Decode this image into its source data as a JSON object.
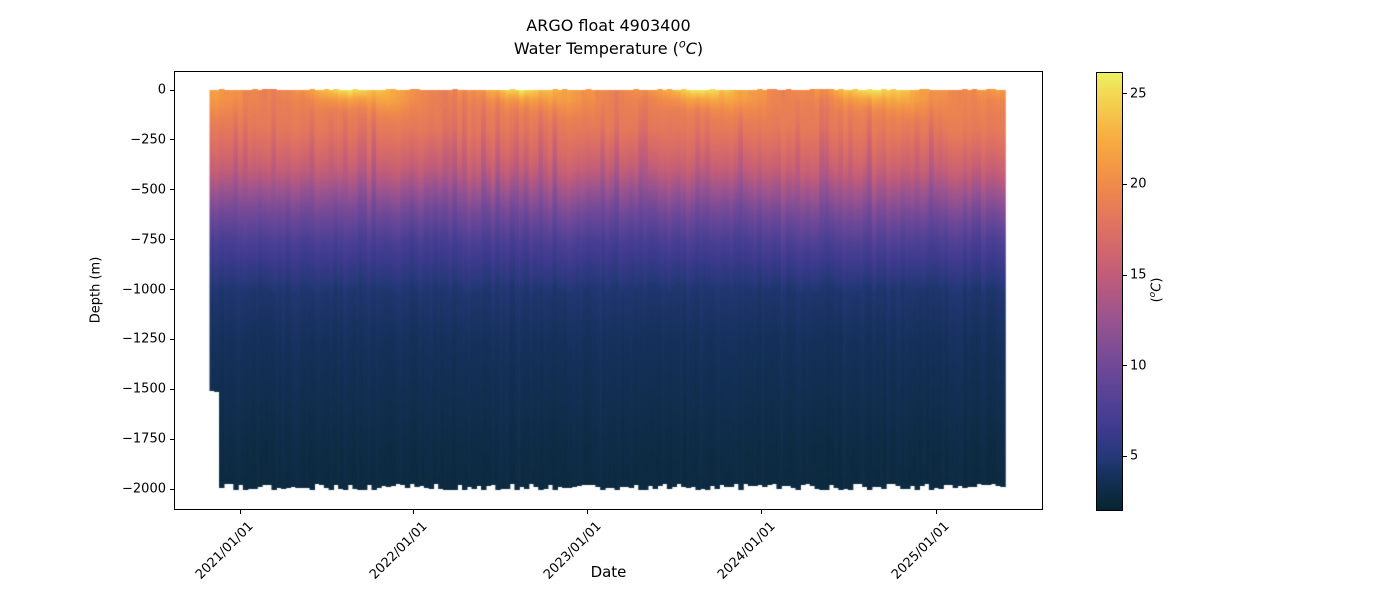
{
  "figure": {
    "title_line1": "ARGO float 4903400",
    "title_line2": {
      "prefix": "Water Temperature (",
      "sup": "o",
      "unit": "C",
      "suffix": ")"
    }
  },
  "axes": {
    "xlabel": "Date",
    "ylabel": "Depth (m)",
    "ytick_values": [
      0,
      -250,
      -500,
      -750,
      -1000,
      -1250,
      -1500,
      -1750,
      -2000
    ],
    "ytick_labels": [
      "0",
      "−250",
      "−500",
      "−750",
      "−1000",
      "−1250",
      "−1500",
      "−1750",
      "−2000"
    ],
    "xtick_labels": [
      "2021/01/01",
      "2022/01/01",
      "2023/01/01",
      "2024/01/01",
      "2025/01/01"
    ],
    "xtick_year_day_offsets": [
      0,
      365,
      730,
      1095,
      1461
    ],
    "ylim_m": [
      100,
      -2110
    ]
  },
  "colorbar": {
    "label": {
      "prefix": "(",
      "sup": "o",
      "unit": "C",
      "suffix": ")"
    },
    "tick_values": [
      25,
      20,
      15,
      10,
      5
    ],
    "tick_labels": [
      "25",
      "20",
      "15",
      "10",
      "5"
    ],
    "vmin": 2.1,
    "vmax": 26.2,
    "stops": [
      {
        "t": 2.1,
        "c": "#082433"
      },
      {
        "t": 3.0,
        "c": "#0d2b42"
      },
      {
        "t": 4.0,
        "c": "#15315c"
      },
      {
        "t": 5.0,
        "c": "#253878"
      },
      {
        "t": 6.5,
        "c": "#3c3a8c"
      },
      {
        "t": 8.0,
        "c": "#514195"
      },
      {
        "t": 10.0,
        "c": "#6f4898"
      },
      {
        "t": 12.5,
        "c": "#985390"
      },
      {
        "t": 15.0,
        "c": "#c05c7a"
      },
      {
        "t": 17.5,
        "c": "#dd6f63"
      },
      {
        "t": 20.0,
        "c": "#f08a4b"
      },
      {
        "t": 22.5,
        "c": "#f7ab41"
      },
      {
        "t": 25.0,
        "c": "#f3d852"
      },
      {
        "t": 26.2,
        "c": "#eaf261"
      }
    ]
  },
  "chart_data": {
    "type": "heatmap",
    "title": "ARGO float 4903400 — Water Temperature (°C)",
    "xlabel": "Date",
    "ylabel": "Depth (m)",
    "colormap_range_c": [
      2.1,
      26.2
    ],
    "coverage": {
      "start": "2020-11-03",
      "end": "2025-05-27",
      "profile_interval_days": 10,
      "first_profiles_max_depth_m": -1500,
      "typical_profile_max_depth_m": -1990
    },
    "y_depths_m": [
      0,
      -50,
      -100,
      -150,
      -200,
      -300,
      -400,
      -500,
      -600,
      -750,
      -1000,
      -1250,
      -1500,
      -1750,
      -2000
    ],
    "x_time_points": [
      "2020-11",
      "2021-02",
      "2021-05",
      "2021-08",
      "2021-11",
      "2022-02",
      "2022-05",
      "2022-08",
      "2022-11",
      "2023-02",
      "2023-05",
      "2023-08",
      "2023-11",
      "2024-02",
      "2024-05",
      "2024-08",
      "2024-11",
      "2025-02",
      "2025-05"
    ],
    "temperature_c": [
      [
        21.5,
        21.0,
        20.0,
        19.0,
        18.4,
        17.0,
        15.4,
        12.8,
        10.5,
        7.6,
        4.7,
        4.0,
        3.6,
        3.2,
        2.9
      ],
      [
        19.2,
        19.1,
        19.0,
        18.8,
        18.5,
        17.2,
        15.6,
        13.0,
        10.7,
        7.8,
        4.7,
        4.0,
        3.6,
        3.2,
        2.9
      ],
      [
        20.6,
        19.4,
        18.9,
        18.6,
        18.3,
        16.8,
        15.1,
        12.4,
        10.2,
        7.4,
        4.7,
        4.0,
        3.6,
        3.2,
        2.9
      ],
      [
        26.0,
        21.6,
        19.4,
        18.8,
        18.4,
        17.1,
        15.5,
        12.9,
        10.6,
        7.7,
        4.7,
        4.0,
        3.6,
        3.2,
        2.9
      ],
      [
        22.6,
        21.9,
        20.3,
        19.1,
        18.5,
        17.0,
        15.3,
        12.7,
        10.4,
        7.5,
        4.7,
        4.0,
        3.6,
        3.2,
        2.9
      ],
      [
        19.0,
        18.9,
        18.8,
        18.6,
        18.3,
        16.7,
        15.0,
        12.3,
        10.1,
        7.3,
        4.7,
        4.0,
        3.6,
        3.2,
        2.9
      ],
      [
        20.8,
        19.5,
        18.9,
        18.6,
        18.3,
        17.0,
        15.4,
        12.8,
        10.5,
        7.6,
        4.7,
        4.0,
        3.6,
        3.2,
        2.9
      ],
      [
        25.6,
        21.3,
        19.3,
        18.7,
        18.3,
        16.9,
        15.2,
        12.6,
        10.3,
        7.5,
        4.7,
        4.0,
        3.6,
        3.2,
        2.9
      ],
      [
        22.3,
        21.6,
        20.1,
        19.0,
        18.4,
        17.2,
        15.6,
        13.1,
        10.8,
        7.8,
        4.7,
        4.0,
        3.6,
        3.2,
        2.9
      ],
      [
        19.1,
        19.0,
        18.9,
        18.7,
        18.4,
        16.8,
        15.1,
        12.5,
        10.2,
        7.4,
        4.7,
        4.0,
        3.6,
        3.2,
        2.9
      ],
      [
        20.7,
        19.4,
        18.9,
        18.6,
        18.3,
        17.0,
        15.3,
        12.7,
        10.4,
        7.6,
        4.7,
        4.0,
        3.6,
        3.2,
        2.9
      ],
      [
        26.1,
        21.9,
        19.5,
        18.8,
        18.4,
        17.1,
        15.5,
        12.9,
        10.6,
        7.7,
        4.7,
        4.0,
        3.6,
        3.2,
        2.9
      ],
      [
        22.5,
        21.8,
        20.2,
        19.1,
        18.5,
        16.9,
        15.2,
        12.6,
        10.3,
        7.5,
        4.7,
        4.0,
        3.6,
        3.2,
        2.9
      ],
      [
        19.3,
        19.2,
        19.1,
        18.9,
        18.6,
        17.3,
        15.8,
        13.3,
        11.0,
        8.0,
        4.7,
        4.0,
        3.6,
        3.2,
        2.9
      ],
      [
        21.1,
        19.6,
        19.0,
        18.8,
        18.5,
        17.2,
        15.7,
        13.2,
        10.9,
        7.9,
        4.7,
        4.0,
        3.6,
        3.2,
        2.9
      ],
      [
        26.3,
        22.3,
        19.9,
        19.1,
        18.7,
        17.4,
        15.9,
        13.4,
        11.1,
        8.1,
        4.7,
        4.0,
        3.6,
        3.2,
        2.9
      ],
      [
        22.9,
        22.1,
        20.5,
        19.3,
        18.7,
        17.3,
        15.8,
        13.3,
        11.0,
        8.0,
        4.7,
        4.0,
        3.6,
        3.2,
        2.9
      ],
      [
        19.4,
        19.3,
        19.2,
        19.0,
        18.7,
        17.2,
        15.6,
        13.1,
        10.8,
        7.8,
        4.7,
        4.0,
        3.6,
        3.2,
        2.9
      ],
      [
        21.3,
        19.7,
        19.1,
        18.8,
        18.5,
        17.1,
        15.5,
        13.0,
        10.7,
        7.7,
        4.7,
        4.0,
        3.6,
        3.2,
        2.9
      ]
    ]
  }
}
